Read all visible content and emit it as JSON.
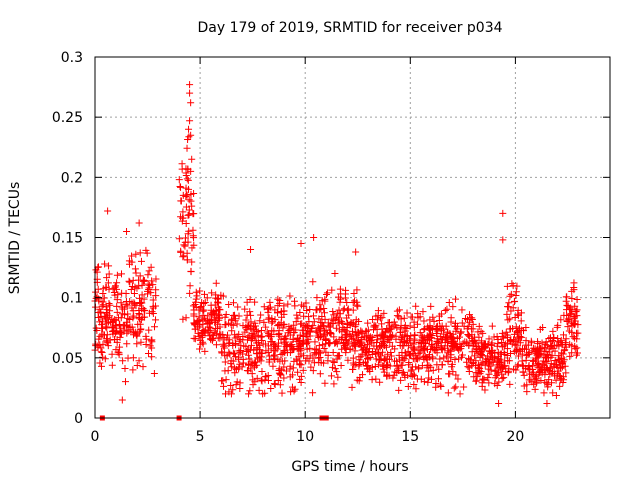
{
  "chart_data": {
    "type": "scatter",
    "title": "Day 179 of 2019, SRMTID for receiver p034",
    "xlabel": "GPS time / hours",
    "ylabel": "SRMTID / TECUs",
    "xlim": [
      0,
      24.5
    ],
    "ylim": [
      0,
      0.3
    ],
    "xticks": [
      0,
      5,
      10,
      15,
      20
    ],
    "xtick_labels": [
      "0",
      "5",
      "10",
      "15",
      "20"
    ],
    "yticks": [
      0,
      0.05,
      0.1,
      0.15,
      0.2,
      0.25,
      0.3
    ],
    "ytick_labels": [
      "0",
      "0.05",
      "0.1",
      "0.15",
      "0.2",
      "0.25",
      "0.3"
    ],
    "grid": true,
    "marker": "+",
    "color": "#ff0000",
    "clusters": [
      {
        "x_range": [
          0.0,
          2.9
        ],
        "y_range": [
          0.015,
          0.17
        ],
        "y_center": 0.085
      },
      {
        "x_range": [
          4.0,
          4.7
        ],
        "y_range": [
          0.05,
          0.275
        ],
        "y_center": 0.16
      },
      {
        "x_range": [
          4.7,
          6.0
        ],
        "y_range": [
          0.04,
          0.13
        ],
        "y_center": 0.08
      },
      {
        "x_range": [
          6.0,
          10.0
        ],
        "y_range": [
          0.02,
          0.14
        ],
        "y_center": 0.06
      },
      {
        "x_range": [
          10.0,
          12.5
        ],
        "y_range": [
          0.02,
          0.15
        ],
        "y_center": 0.07
      },
      {
        "x_range": [
          12.5,
          18.0
        ],
        "y_range": [
          0.02,
          0.12
        ],
        "y_center": 0.06
      },
      {
        "x_range": [
          18.0,
          19.5
        ],
        "y_range": [
          0.015,
          0.1
        ],
        "y_center": 0.05
      },
      {
        "x_range": [
          19.5,
          20.3
        ],
        "y_range": [
          0.02,
          0.17
        ],
        "y_center": 0.07
      },
      {
        "x_range": [
          20.3,
          22.4
        ],
        "y_range": [
          0.01,
          0.1
        ],
        "y_center": 0.05
      },
      {
        "x_range": [
          22.4,
          23.0
        ],
        "y_range": [
          0.03,
          0.13
        ],
        "y_center": 0.08
      }
    ],
    "outliers": [
      {
        "x": 4.5,
        "y": 0.277
      },
      {
        "x": 4.5,
        "y": 0.27
      },
      {
        "x": 4.55,
        "y": 0.262
      },
      {
        "x": 4.5,
        "y": 0.247
      },
      {
        "x": 4.45,
        "y": 0.24
      },
      {
        "x": 4.55,
        "y": 0.235
      },
      {
        "x": 4.6,
        "y": 0.215
      },
      {
        "x": 4.55,
        "y": 0.205
      },
      {
        "x": 4.2,
        "y": 0.185
      },
      {
        "x": 19.4,
        "y": 0.17
      },
      {
        "x": 19.4,
        "y": 0.148
      },
      {
        "x": 10.4,
        "y": 0.15
      },
      {
        "x": 0.6,
        "y": 0.172
      },
      {
        "x": 2.1,
        "y": 0.162
      },
      {
        "x": 1.5,
        "y": 0.155
      },
      {
        "x": 9.8,
        "y": 0.145
      },
      {
        "x": 7.4,
        "y": 0.14
      },
      {
        "x": 12.4,
        "y": 0.138
      },
      {
        "x": 1.3,
        "y": 0.015
      },
      {
        "x": 19.2,
        "y": 0.012
      },
      {
        "x": 21.5,
        "y": 0.012
      }
    ],
    "baseline_markers": [
      {
        "x": 0.35,
        "y": 0
      },
      {
        "x": 4.0,
        "y": 0
      },
      {
        "x": 10.8,
        "y": 0
      },
      {
        "x": 11.0,
        "y": 0
      }
    ]
  }
}
